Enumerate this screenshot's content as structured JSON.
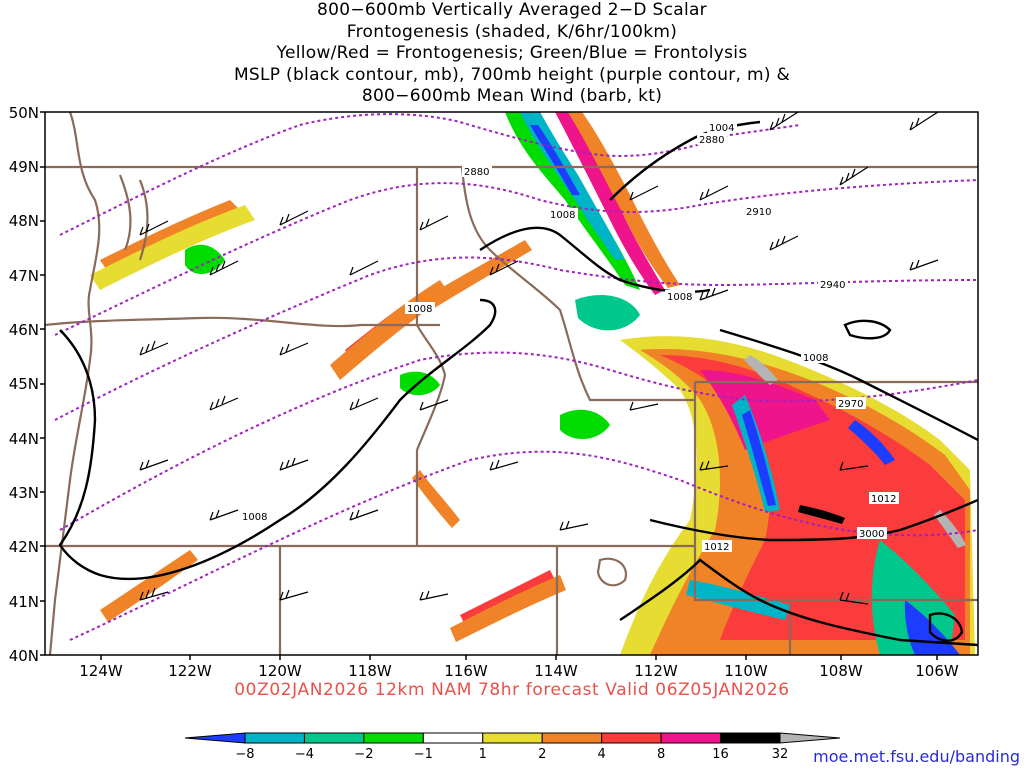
{
  "title_lines": [
    "800−600mb Vertically Averaged 2−D Scalar",
    "Frontogenesis (shaded, K/6hr/100km)",
    "Yellow/Red = Frontogenesis;  Green/Blue = Frontolysis",
    "MSLP (black contour, mb), 700mb height (purple contour, m) &",
    "800−600mb Mean Wind (barb, kt)"
  ],
  "footer": "00Z02JAN2026 12km NAM 78hr forecast Valid 06Z05JAN2026",
  "credit": "moe.met.fsu.edu/banding",
  "axes": {
    "lat_labels": [
      "50N",
      "49N",
      "48N",
      "47N",
      "46N",
      "45N",
      "44N",
      "43N",
      "42N",
      "41N",
      "40N"
    ],
    "lon_labels": [
      "124W",
      "122W",
      "120W",
      "118W",
      "116W",
      "114W",
      "112W",
      "110W",
      "108W",
      "106W"
    ]
  },
  "colorbar": {
    "labels": [
      "−8",
      "−4",
      "−2",
      "−1",
      "1",
      "2",
      "4",
      "8",
      "16",
      "32"
    ],
    "colors": [
      "#1e3cff",
      "#00b4c8",
      "#00c88c",
      "#00dc00",
      "#ffffff",
      "#e6dc32",
      "#f08228",
      "#fa3c3c",
      "#f0148c",
      "#000000",
      "#b4b4b4"
    ]
  },
  "contour_labels": {
    "mslp": [
      "1004",
      "1008",
      "1008",
      "1008",
      "1008",
      "1008",
      "1012",
      "1012"
    ],
    "height": [
      "2880",
      "2880",
      "2910",
      "2940",
      "2970",
      "3000"
    ]
  },
  "colors": {
    "mslp": "#000000",
    "height": "#a020c0",
    "borders": "#8a6a58",
    "footer": "#e8524a",
    "credit": "#2a2ad8"
  }
}
